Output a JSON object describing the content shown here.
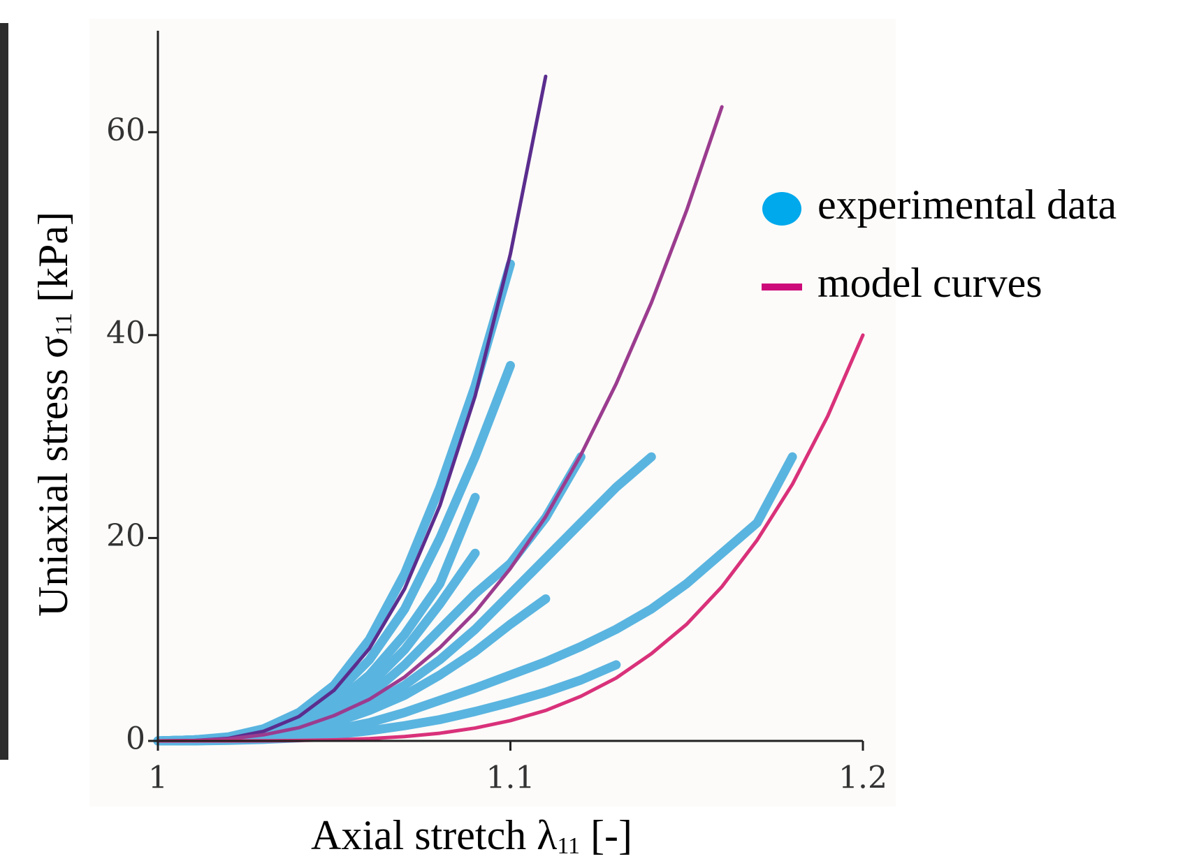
{
  "chart_data": {
    "type": "line",
    "x_label": {
      "main": "Axial stretch λ",
      "sub": "11",
      "unit": " [-]"
    },
    "y_label": {
      "main": "Uniaxial stress σ",
      "sub": "11",
      "unit": " [kPa]"
    },
    "x": [
      1.0,
      1.01,
      1.02,
      1.03,
      1.04,
      1.05,
      1.06,
      1.07,
      1.08,
      1.09,
      1.1,
      1.11,
      1.12,
      1.13,
      1.14,
      1.15,
      1.16,
      1.17,
      1.18,
      1.19,
      1.2
    ],
    "xlim": [
      1,
      1.2
    ],
    "xticks": [
      1,
      1.1,
      1.2
    ],
    "ylim": [
      0,
      70
    ],
    "yticks": [
      0,
      20,
      40,
      60
    ],
    "series": [
      {
        "color": "#5ab4e0",
        "line_width": 13,
        "values": [
          0,
          0.1,
          0.4,
          1.2,
          2.8,
          5.5,
          10,
          16.5,
          25,
          35,
          47,
          null,
          null,
          null,
          null,
          null,
          null,
          null,
          null,
          null,
          null
        ]
      },
      {
        "color": "#5ab4e0",
        "line_width": 13,
        "values": [
          0,
          0.1,
          0.3,
          0.9,
          2.2,
          4.5,
          8,
          13,
          20,
          28,
          37,
          null,
          null,
          null,
          null,
          null,
          null,
          null,
          null,
          null,
          null
        ]
      },
      {
        "color": "#5ab4e0",
        "line_width": 13,
        "values": [
          0,
          0.1,
          0.3,
          0.8,
          1.8,
          3.6,
          6.5,
          10.5,
          15.5,
          24,
          null,
          null,
          null,
          null,
          null,
          null,
          null,
          null,
          null,
          null,
          null
        ]
      },
      {
        "color": "#5ab4e0",
        "line_width": 13,
        "values": [
          0,
          0.1,
          0.2,
          0.6,
          1.5,
          3,
          5.5,
          9,
          13.5,
          18.5,
          null,
          null,
          null,
          null,
          null,
          null,
          null,
          null,
          null,
          null,
          null
        ]
      },
      {
        "color": "#5ab4e0",
        "line_width": 13,
        "values": [
          0,
          0.05,
          0.2,
          0.5,
          1.2,
          2.5,
          4.5,
          7.5,
          11,
          14.5,
          17.5,
          22,
          28,
          null,
          null,
          null,
          null,
          null,
          null,
          null,
          null
        ]
      },
      {
        "color": "#5ab4e0",
        "line_width": 13,
        "values": [
          0,
          0.05,
          0.2,
          0.5,
          1,
          2,
          3.5,
          5.5,
          8,
          11,
          14.5,
          18,
          21.5,
          25,
          28,
          null,
          null,
          null,
          null,
          null,
          null
        ]
      },
      {
        "color": "#5ab4e0",
        "line_width": 13,
        "values": [
          0,
          0,
          0.1,
          0.3,
          0.6,
          1.1,
          1.8,
          2.8,
          4,
          5.2,
          6.5,
          7.8,
          9.3,
          11,
          13,
          15.5,
          18.5,
          21.5,
          28,
          null,
          null
        ]
      },
      {
        "color": "#5ab4e0",
        "line_width": 13,
        "values": [
          0,
          0,
          0.05,
          0.15,
          0.3,
          0.6,
          1,
          1.5,
          2.1,
          2.9,
          3.8,
          4.8,
          6,
          7.5,
          null,
          null,
          null,
          null,
          null,
          null,
          null
        ]
      },
      {
        "color": "#5ab4e0",
        "line_width": 13,
        "values": [
          0,
          0.05,
          0.2,
          0.4,
          0.9,
          1.8,
          3,
          4.5,
          6.5,
          8.8,
          11.5,
          14,
          null,
          null,
          null,
          null,
          null,
          null,
          null,
          null,
          null
        ]
      },
      {
        "color": "#5b2d8e",
        "line_width": 5,
        "values": [
          0,
          0.03,
          0.25,
          0.95,
          2.4,
          5,
          9.1,
          15,
          23.2,
          34,
          48,
          65.5,
          null,
          null,
          null,
          null,
          null,
          null,
          null,
          null,
          null
        ]
      },
      {
        "color": "#9b3c8f",
        "line_width": 5,
        "values": [
          0,
          0.03,
          0.2,
          0.6,
          1.3,
          2.5,
          4.1,
          6.3,
          9.2,
          12.7,
          17,
          22.1,
          28.2,
          35.2,
          43.2,
          52.3,
          62.5,
          null,
          null,
          null,
          null
        ]
      },
      {
        "color": "#d9317a",
        "line_width": 5,
        "values": [
          0,
          0,
          0,
          0.01,
          0.04,
          0.1,
          0.22,
          0.43,
          0.76,
          1.27,
          2,
          3,
          4.4,
          6.2,
          8.6,
          11.5,
          15.2,
          19.8,
          25.3,
          32,
          40
        ]
      }
    ],
    "legend": [
      {
        "label": "experimental data",
        "color": "#00a8ec",
        "marker": "dot"
      },
      {
        "label": "model curves",
        "color": "#cc0a7a",
        "marker": "dash"
      }
    ]
  }
}
